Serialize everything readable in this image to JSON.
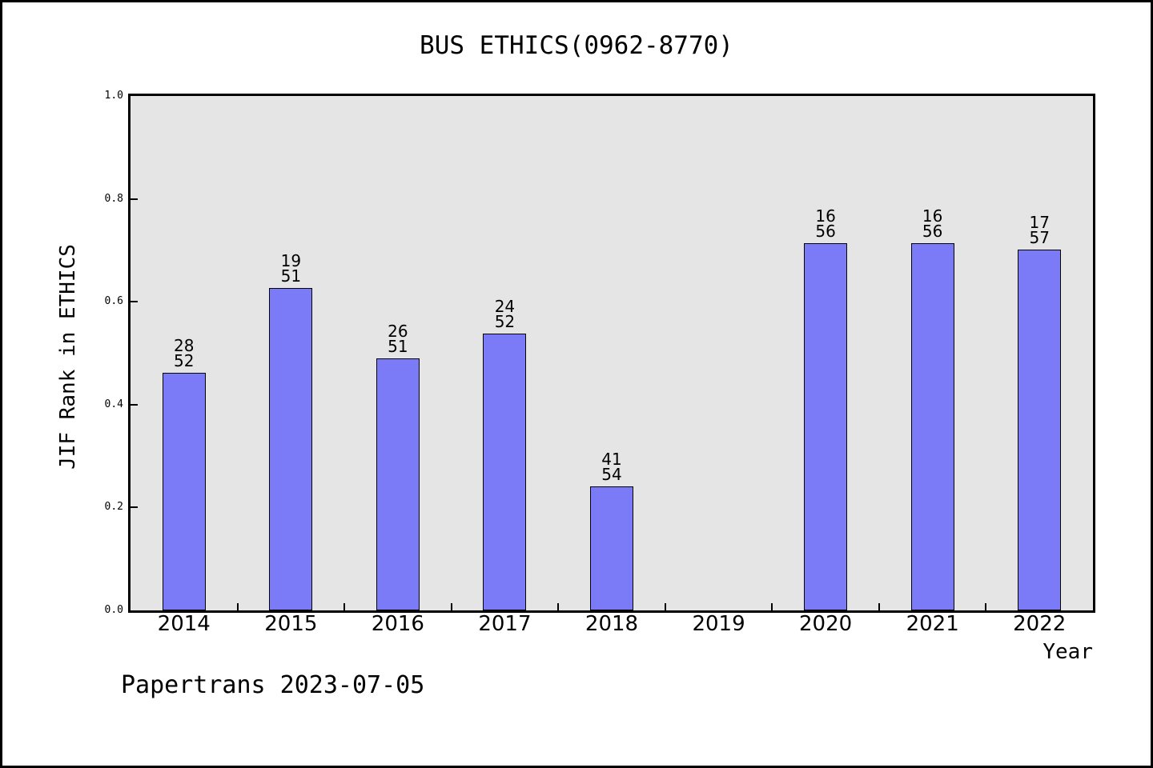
{
  "title": "BUS ETHICS(0962-8770)",
  "footer": "Papertrans 2023-07-05",
  "chart_data": {
    "type": "bar",
    "title": "BUS ETHICS(0962-8770)",
    "xlabel": "Year",
    "ylabel": "JIF Rank in ETHICS",
    "ylim": [
      0.0,
      1.0
    ],
    "y_ticks": [
      "0.0",
      "0.2",
      "0.4",
      "0.6",
      "0.8",
      "1.0"
    ],
    "categories": [
      "2014",
      "2015",
      "2016",
      "2017",
      "2018",
      "2019",
      "2020",
      "2021",
      "2022"
    ],
    "bars": [
      {
        "year": "2014",
        "rank": "28",
        "total": "52",
        "value": 0.4615
      },
      {
        "year": "2015",
        "rank": "19",
        "total": "51",
        "value": 0.6275
      },
      {
        "year": "2016",
        "rank": "26",
        "total": "51",
        "value": 0.4902
      },
      {
        "year": "2017",
        "rank": "24",
        "total": "52",
        "value": 0.5385
      },
      {
        "year": "2018",
        "rank": "41",
        "total": "54",
        "value": 0.2407
      },
      {
        "year": "2019",
        "rank": null,
        "total": null,
        "value": null
      },
      {
        "year": "2020",
        "rank": "16",
        "total": "56",
        "value": 0.7143
      },
      {
        "year": "2021",
        "rank": "16",
        "total": "56",
        "value": 0.7143
      },
      {
        "year": "2022",
        "rank": "17",
        "total": "57",
        "value": 0.7018
      }
    ],
    "grid": false,
    "legend_position": "none",
    "colors": {
      "bar_fill": "#7b7bf8",
      "bar_edge": "#000000",
      "plot_background": "#e5e5e5",
      "figure_background": "#ffffff",
      "text": "#000000"
    }
  }
}
